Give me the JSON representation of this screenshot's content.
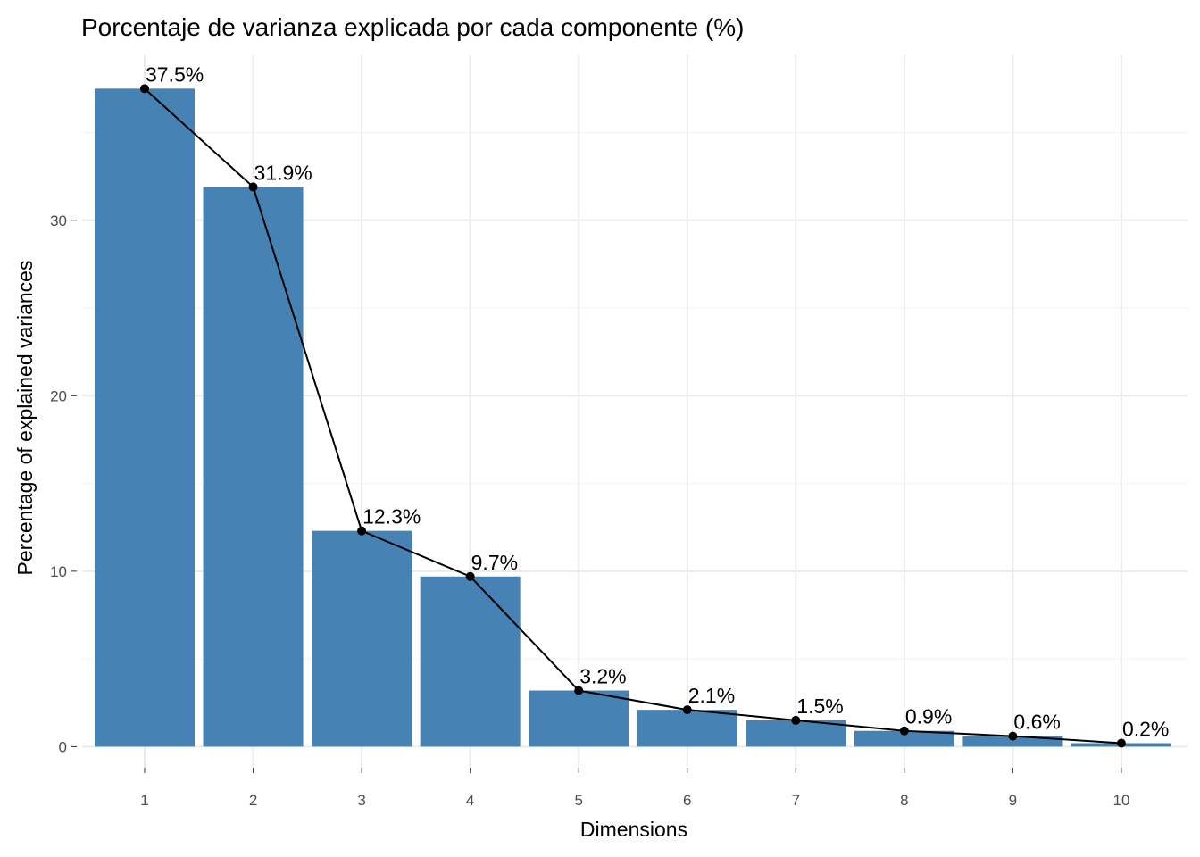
{
  "chart_data": {
    "type": "bar",
    "title": "Porcentaje de varianza explicada por cada componente (%)",
    "xlabel": "Dimensions",
    "ylabel": "Percentage of explained variances",
    "categories": [
      "1",
      "2",
      "3",
      "4",
      "5",
      "6",
      "7",
      "8",
      "9",
      "10"
    ],
    "values": [
      37.5,
      31.9,
      12.3,
      9.7,
      3.2,
      2.1,
      1.5,
      0.9,
      0.6,
      0.2
    ],
    "data_labels": [
      "37.5%",
      "31.9%",
      "12.3%",
      "9.7%",
      "3.2%",
      "2.1%",
      "1.5%",
      "0.9%",
      "0.6%",
      "0.2%"
    ],
    "yticks": [
      0,
      10,
      20,
      30
    ],
    "ytick_labels": [
      "0",
      "10",
      "20",
      "30"
    ],
    "ylim": [
      -1.2,
      39.4
    ],
    "grid": true,
    "overlay_line": true,
    "bar_color": "#4682B4",
    "line_color": "#000000"
  }
}
